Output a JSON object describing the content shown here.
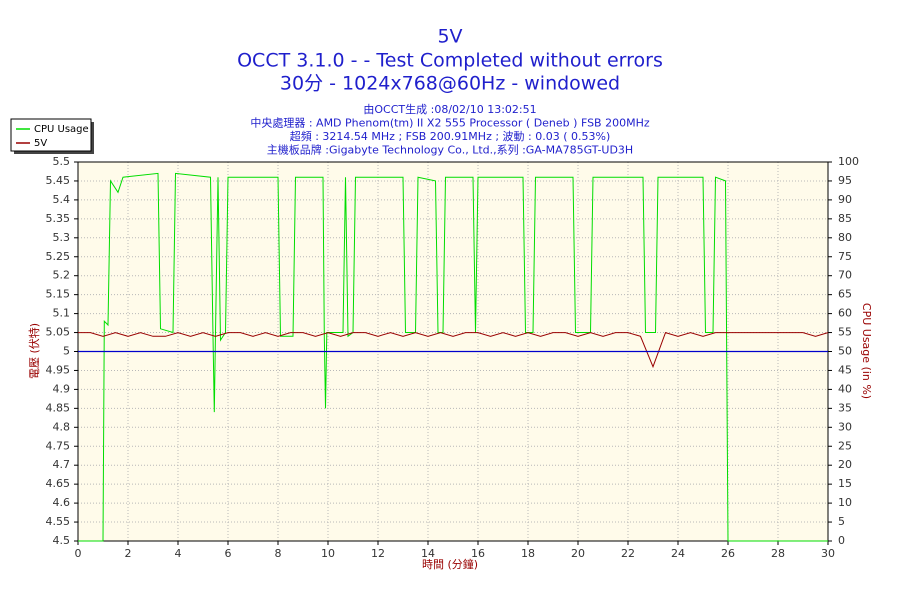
{
  "chart_data": {
    "type": "line",
    "title": "5V",
    "title_lines": [
      "OCCT 3.1.0 -  - Test Completed without errors",
      "30分 - 1024x768@60Hz - windowed"
    ],
    "subtitles": [
      "由OCCT生成 :08/02/10 13:02:51",
      "中央處理器 : AMD Phenom(tm) II X2 555 Processor ( Deneb ) FSB 200MHz",
      "超頻 : 3214.54 MHz ; FSB 200.91MHz ; 波動 : 0.03 ( 0.53%)",
      "主機板品牌 :Gigabyte Technology Co., Ltd.,系列 :GA-MA785GT-UD3H"
    ],
    "xlabel": "時間 (分鐘)",
    "ylabel": "電壓 (伏特)",
    "y2label": "CPU Usage (in %)",
    "xlim": [
      0,
      30
    ],
    "xticks": [
      0,
      2,
      4,
      6,
      8,
      10,
      12,
      14,
      16,
      18,
      20,
      22,
      24,
      26,
      28,
      30
    ],
    "ylim": [
      4.5,
      5.5
    ],
    "yticks": [
      4.5,
      4.55,
      4.6,
      4.65,
      4.7,
      4.75,
      4.8,
      4.85,
      4.9,
      4.95,
      5,
      5.05,
      5.1,
      5.15,
      5.2,
      5.25,
      5.3,
      5.35,
      5.4,
      5.45,
      5.5
    ],
    "y2lim": [
      0,
      100
    ],
    "y2ticks": [
      0,
      5,
      10,
      15,
      20,
      25,
      30,
      35,
      40,
      45,
      50,
      55,
      60,
      65,
      70,
      75,
      80,
      85,
      90,
      95,
      100
    ],
    "grid": true,
    "legend": "upper left",
    "hline": {
      "value": 5,
      "color": "#0000cc"
    },
    "series": [
      {
        "name": "CPU Usage",
        "color": "#00dd00",
        "axis": "y2",
        "x": [
          0,
          0.95,
          1.0,
          1.05,
          1.2,
          1.3,
          1.6,
          1.8,
          3.2,
          3.3,
          3.8,
          3.9,
          5.3,
          5.4,
          5.45,
          5.5,
          5.6,
          5.7,
          5.9,
          6.0,
          8.0,
          8.1,
          8.6,
          8.7,
          9.8,
          9.85,
          9.9,
          9.95,
          10.6,
          10.7,
          10.8,
          11.0,
          11.1,
          13.0,
          13.1,
          13.5,
          13.6,
          14.3,
          14.4,
          14.6,
          14.7,
          15.8,
          15.9,
          16.0,
          17.8,
          17.9,
          18.2,
          18.3,
          19.8,
          19.9,
          20.5,
          20.6,
          22.6,
          22.7,
          23.1,
          23.2,
          25.0,
          25.1,
          25.4,
          25.5,
          25.9,
          26.0,
          30
        ],
        "values": [
          0,
          0,
          0,
          58,
          57,
          95,
          92,
          96,
          97,
          56,
          55,
          97,
          96,
          54,
          34,
          55,
          96,
          53,
          55,
          96,
          96,
          54,
          54,
          96,
          96,
          54,
          35,
          55,
          55,
          96,
          54,
          55,
          96,
          96,
          55,
          55,
          96,
          95,
          55,
          55,
          96,
          96,
          55,
          96,
          96,
          55,
          55,
          96,
          96,
          55,
          55,
          96,
          96,
          55,
          55,
          96,
          96,
          55,
          55,
          96,
          95,
          0,
          0
        ]
      },
      {
        "name": "5V",
        "color": "#990000",
        "axis": "y",
        "x": [
          0,
          0.5,
          1,
          1.5,
          2,
          2.5,
          3,
          3.5,
          4,
          4.5,
          5,
          5.5,
          6,
          6.5,
          7,
          7.5,
          8,
          8.5,
          9,
          9.5,
          10,
          10.5,
          11,
          11.5,
          12,
          12.5,
          13,
          13.5,
          14,
          14.5,
          15,
          15.5,
          16,
          16.5,
          17,
          17.5,
          18,
          18.5,
          19,
          19.5,
          20,
          20.5,
          21,
          21.5,
          22,
          22.5,
          23,
          23.5,
          24,
          24.5,
          25,
          25.5,
          26,
          26.5,
          27,
          27.5,
          28,
          28.5,
          29,
          29.5,
          30
        ],
        "values": [
          5.05,
          5.05,
          5.04,
          5.05,
          5.04,
          5.05,
          5.04,
          5.04,
          5.05,
          5.04,
          5.05,
          5.04,
          5.05,
          5.05,
          5.04,
          5.05,
          5.04,
          5.05,
          5.05,
          5.04,
          5.05,
          5.04,
          5.05,
          5.05,
          5.04,
          5.05,
          5.04,
          5.05,
          5.04,
          5.05,
          5.04,
          5.05,
          5.05,
          5.04,
          5.05,
          5.04,
          5.05,
          5.04,
          5.05,
          5.05,
          5.04,
          5.05,
          5.04,
          5.05,
          5.05,
          5.04,
          4.96,
          5.05,
          5.04,
          5.05,
          5.04,
          5.05,
          5.05,
          5.05,
          5.05,
          5.05,
          5.05,
          5.05,
          5.05,
          5.04,
          5.05
        ]
      }
    ]
  }
}
